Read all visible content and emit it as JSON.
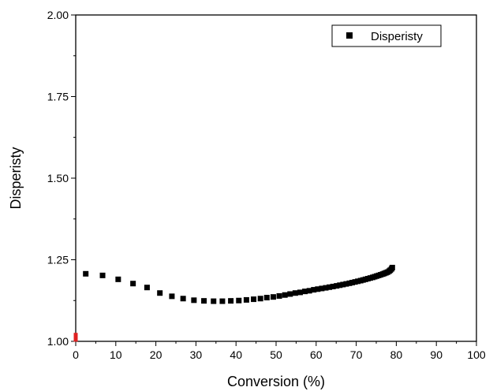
{
  "chart_data": {
    "type": "scatter",
    "xlabel": "Conversion (%)",
    "ylabel": "Disperisty",
    "xlim": [
      0,
      100
    ],
    "ylim": [
      1.0,
      2.0
    ],
    "x_ticks": [
      "0",
      "10",
      "20",
      "30",
      "40",
      "50",
      "60",
      "70",
      "80",
      "90",
      "100"
    ],
    "y_ticks": [
      "1.00",
      "1.25",
      "1.50",
      "1.75",
      "2.00"
    ],
    "legend": {
      "placement": "top-right",
      "entries": [
        "Disperisty"
      ]
    },
    "grid": false,
    "series": [
      {
        "name": "Disperisty",
        "color": "#000000",
        "marker": "square",
        "points": [
          [
            2.5,
            1.207
          ],
          [
            6.7,
            1.202
          ],
          [
            10.6,
            1.19
          ],
          [
            14.3,
            1.177
          ],
          [
            17.8,
            1.165
          ],
          [
            21.0,
            1.148
          ],
          [
            24.0,
            1.138
          ],
          [
            26.8,
            1.131
          ],
          [
            29.5,
            1.126
          ],
          [
            32.0,
            1.124
          ],
          [
            34.4,
            1.123
          ],
          [
            36.6,
            1.123
          ],
          [
            38.7,
            1.124
          ],
          [
            40.7,
            1.125
          ],
          [
            42.6,
            1.127
          ],
          [
            44.4,
            1.129
          ],
          [
            46.1,
            1.131
          ],
          [
            47.7,
            1.134
          ],
          [
            49.3,
            1.136
          ],
          [
            50.8,
            1.139
          ],
          [
            52.2,
            1.142
          ],
          [
            53.5,
            1.145
          ],
          [
            54.8,
            1.148
          ],
          [
            56.0,
            1.15
          ],
          [
            57.2,
            1.153
          ],
          [
            58.3,
            1.155
          ],
          [
            59.4,
            1.158
          ],
          [
            60.4,
            1.16
          ],
          [
            61.4,
            1.162
          ],
          [
            62.4,
            1.164
          ],
          [
            63.3,
            1.166
          ],
          [
            64.2,
            1.168
          ],
          [
            65.1,
            1.17
          ],
          [
            65.9,
            1.172
          ],
          [
            66.7,
            1.174
          ],
          [
            67.5,
            1.176
          ],
          [
            68.3,
            1.178
          ],
          [
            69.0,
            1.18
          ],
          [
            69.7,
            1.182
          ],
          [
            70.4,
            1.184
          ],
          [
            71.1,
            1.186
          ],
          [
            71.7,
            1.188
          ],
          [
            72.3,
            1.19
          ],
          [
            72.9,
            1.192
          ],
          [
            73.5,
            1.194
          ],
          [
            74.1,
            1.196
          ],
          [
            74.6,
            1.198
          ],
          [
            75.1,
            1.2
          ],
          [
            75.6,
            1.202
          ],
          [
            76.1,
            1.204
          ],
          [
            76.6,
            1.206
          ],
          [
            77.0,
            1.208
          ],
          [
            77.4,
            1.21
          ],
          [
            77.8,
            1.212
          ],
          [
            78.2,
            1.215
          ],
          [
            78.5,
            1.218
          ],
          [
            78.8,
            1.222
          ],
          [
            79.0,
            1.226
          ]
        ]
      },
      {
        "color": "#e02020",
        "marker": "square",
        "points": [
          [
            0,
            1.005
          ],
          [
            0,
            1.012
          ],
          [
            0,
            1.02
          ]
        ]
      }
    ]
  }
}
